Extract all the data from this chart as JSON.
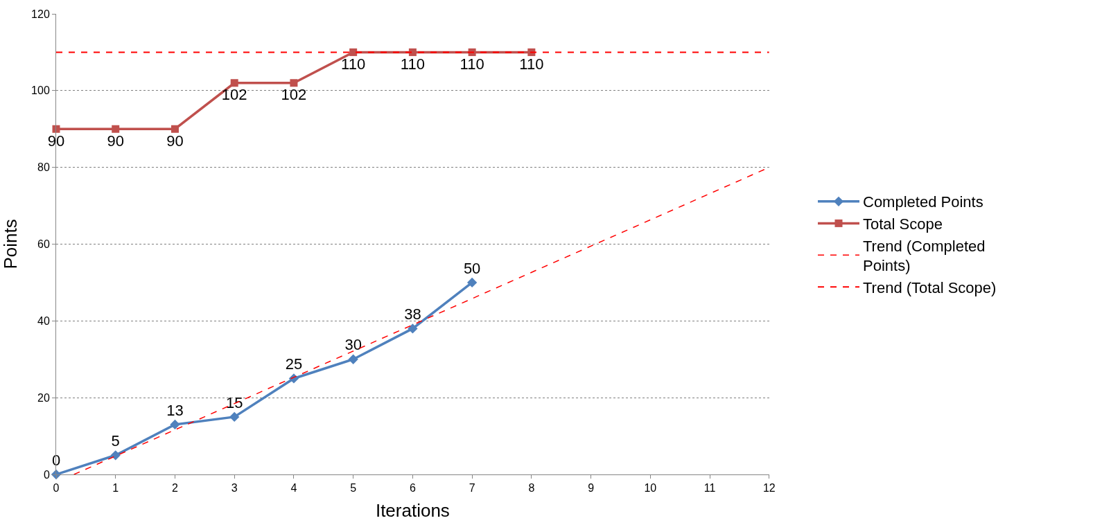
{
  "chart_data": {
    "type": "line",
    "xlabel": "Iterations",
    "ylabel": "Points",
    "xlim": [
      0,
      12
    ],
    "xticks": [
      0,
      1,
      2,
      3,
      4,
      5,
      6,
      7,
      8,
      9,
      10,
      11,
      12
    ],
    "ylim": [
      0,
      120
    ],
    "yticks": [
      0,
      20,
      40,
      60,
      80,
      100,
      120
    ],
    "grid": "y",
    "legend": "right",
    "series": [
      {
        "name": "Completed Points",
        "color": "#4f81bd",
        "marker": "diamond",
        "line_style": "solid",
        "x": [
          0,
          1,
          2,
          3,
          4,
          5,
          6,
          7
        ],
        "values": [
          0,
          5,
          13,
          15,
          25,
          30,
          38,
          50
        ],
        "value_labels": [
          "0",
          "5",
          "13",
          "15",
          "25",
          "30",
          "38",
          "50"
        ]
      },
      {
        "name": "Total Scope",
        "color": "#c0504d",
        "marker": "square",
        "line_style": "solid",
        "x": [
          0,
          1,
          2,
          3,
          4,
          5,
          6,
          7,
          8
        ],
        "values": [
          90,
          90,
          90,
          102,
          102,
          110,
          110,
          110,
          110
        ],
        "value_labels": [
          "90",
          "90",
          "90",
          "102",
          "102",
          "110",
          "110",
          "110",
          "110"
        ]
      },
      {
        "name": "Trend (Completed Points)",
        "color": "#ff0000",
        "marker": "none",
        "line_style": "dotted",
        "x": [
          0.3,
          12
        ],
        "values": [
          0,
          80
        ]
      },
      {
        "name": "Trend (Total Scope)",
        "color": "#ff0000",
        "marker": "none",
        "line_style": "dashed",
        "x": [
          0,
          12
        ],
        "values": [
          110,
          110
        ]
      }
    ]
  }
}
